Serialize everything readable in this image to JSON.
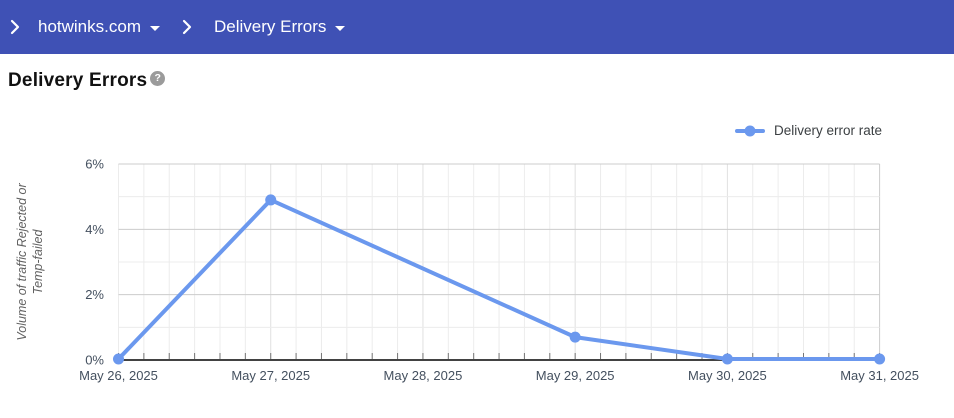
{
  "header": {
    "breadcrumb_items": [
      {
        "label": "hotwinks.com"
      },
      {
        "label": "Delivery Errors"
      }
    ]
  },
  "page": {
    "title": "Delivery Errors",
    "help_icon_glyph": "?"
  },
  "colors": {
    "header_bg": "#3f51b5",
    "header_text": "#ffffff",
    "series_line": "#6b98ee",
    "axis_line": "#424242",
    "grid_major": "#cccccc",
    "grid_minor": "#ececec",
    "grid_day": "#e0e0e0",
    "tick": "#757575",
    "axis_label": "#44505f",
    "ylabel_text": "#616161",
    "help_icon_bg": "#9b9b9b",
    "title_text": "#111111",
    "legend_text": "#3c4043"
  },
  "chart_data": {
    "type": "line",
    "title": "Delivery Errors",
    "categories": [
      "May 26, 2025",
      "May 27, 2025",
      "May 28, 2025",
      "May 29, 2025",
      "May 30, 2025",
      "May 31, 2025"
    ],
    "series": [
      {
        "name": "Delivery error rate",
        "values": [
          0,
          4.9,
          null,
          0.7,
          0,
          0
        ]
      }
    ],
    "xlabel": "",
    "ylabel": "Volume of traffic Rejected or Temp-failed",
    "ylabel_lines": [
      "Volume of traffic Rejected or",
      "Temp-failed"
    ],
    "unit": "%",
    "ylim": [
      0,
      6
    ],
    "y_major_step": 2,
    "y_minor_step": 1,
    "y_tick_labels": [
      "0%",
      "2%",
      "4%",
      "6%"
    ],
    "x_subdivisions_per_day": 6,
    "grid": true,
    "legend_position": "top-right"
  }
}
